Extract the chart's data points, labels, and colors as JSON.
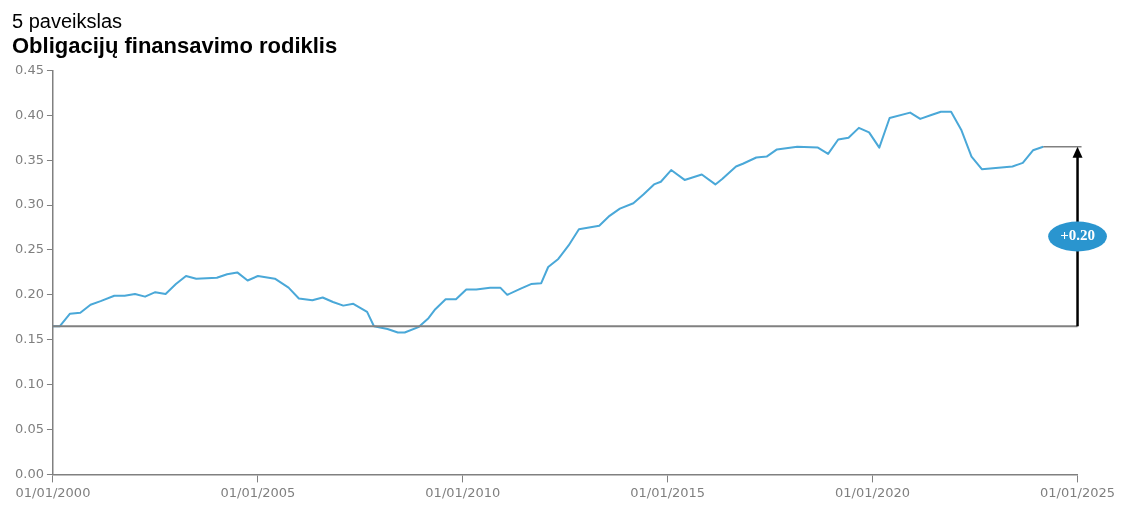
{
  "chart_data": {
    "type": "line",
    "title": "5 paveikslas",
    "subtitle": "Obligacijų finansavimo rodiklis",
    "x": [
      "2000-01",
      "2000-03",
      "2000-06",
      "2000-09",
      "2000-12",
      "2001-03",
      "2001-07",
      "2001-10",
      "2002-01",
      "2002-04",
      "2002-07",
      "2002-10",
      "2003-01",
      "2003-04",
      "2003-07",
      "2004-01",
      "2004-04",
      "2004-07",
      "2004-10",
      "2005-01",
      "2005-06",
      "2005-10",
      "2006-01",
      "2006-05",
      "2006-08",
      "2006-11",
      "2007-02",
      "2007-05",
      "2007-09",
      "2007-11",
      "2008-03",
      "2008-06",
      "2008-08",
      "2008-12",
      "2009-03",
      "2009-05",
      "2009-08",
      "2009-11",
      "2010-02",
      "2010-05",
      "2010-09",
      "2010-12",
      "2011-02",
      "2011-06",
      "2011-09",
      "2011-12",
      "2012-02",
      "2012-05",
      "2012-08",
      "2012-11",
      "2013-05",
      "2013-08",
      "2013-11",
      "2014-03",
      "2014-06",
      "2014-09",
      "2014-11",
      "2015-02",
      "2015-06",
      "2015-11",
      "2016-03",
      "2016-05",
      "2016-09",
      "2016-11",
      "2017-03",
      "2017-06",
      "2017-09",
      "2018-03",
      "2018-09",
      "2018-12",
      "2019-03",
      "2019-06",
      "2019-09",
      "2019-12",
      "2020-03",
      "2020-06",
      "2020-12",
      "2021-03",
      "2021-06",
      "2021-09",
      "2021-12",
      "2022-03",
      "2022-06",
      "2022-09",
      "2023-06",
      "2023-09",
      "2023-12",
      "2024-03"
    ],
    "series": [
      {
        "color": "#4aa8d8",
        "values": [
          0.165,
          0.165,
          0.179,
          0.18,
          0.189,
          0.193,
          0.199,
          0.199,
          0.201,
          0.198,
          0.203,
          0.201,
          0.212,
          0.221,
          0.218,
          0.219,
          0.223,
          0.225,
          0.216,
          0.221,
          0.218,
          0.208,
          0.196,
          0.194,
          0.197,
          0.192,
          0.188,
          0.19,
          0.181,
          0.165,
          0.162,
          0.158,
          0.158,
          0.164,
          0.174,
          0.184,
          0.195,
          0.195,
          0.206,
          0.206,
          0.208,
          0.208,
          0.2,
          0.207,
          0.212,
          0.213,
          0.231,
          0.24,
          0.255,
          0.273,
          0.277,
          0.288,
          0.296,
          0.302,
          0.312,
          0.323,
          0.326,
          0.339,
          0.328,
          0.334,
          0.323,
          0.329,
          0.343,
          0.346,
          0.353,
          0.354,
          0.362,
          0.365,
          0.364,
          0.357,
          0.373,
          0.375,
          0.386,
          0.381,
          0.364,
          0.397,
          0.403,
          0.396,
          0.4,
          0.404,
          0.404,
          0.384,
          0.354,
          0.34,
          0.343,
          0.347,
          0.361,
          0.365
        ]
      }
    ],
    "xlim": [
      "2000-01-01",
      "2025-01-01"
    ],
    "xticks": [
      {
        "value": "2000-01-01",
        "label": "01/01/2000"
      },
      {
        "value": "2005-01-01",
        "label": "01/01/2005"
      },
      {
        "value": "2010-01-01",
        "label": "01/01/2010"
      },
      {
        "value": "2015-01-01",
        "label": "01/01/2015"
      },
      {
        "value": "2020-01-01",
        "label": "01/01/2020"
      },
      {
        "value": "2025-01-01",
        "label": "01/01/2025"
      }
    ],
    "ylim": [
      0,
      0.45
    ],
    "yticks": [
      {
        "value": 0,
        "label": "0.00"
      },
      {
        "value": 0.05,
        "label": "0.05"
      },
      {
        "value": 0.1,
        "label": "0.10"
      },
      {
        "value": 0.15,
        "label": "0.15"
      },
      {
        "value": 0.2,
        "label": "0.20"
      },
      {
        "value": 0.25,
        "label": "0.25"
      },
      {
        "value": 0.3,
        "label": "0.30"
      },
      {
        "value": 0.35,
        "label": "0.35"
      },
      {
        "value": 0.4,
        "label": "0.40"
      },
      {
        "value": 0.45,
        "label": "0.45"
      }
    ],
    "ref_lines": [
      {
        "axis": "y",
        "value": 0.165,
        "color": "#808080"
      }
    ],
    "annotations": [
      "+0.20"
    ],
    "grid": false,
    "legend": false,
    "marker": "none",
    "line_style": "solid"
  }
}
